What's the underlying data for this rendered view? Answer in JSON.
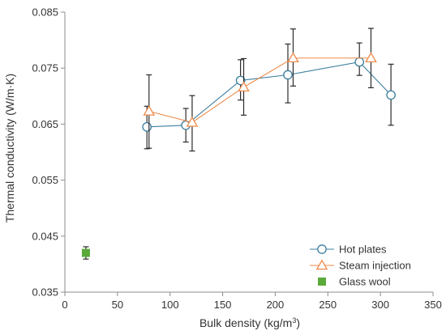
{
  "chart_data": {
    "type": "scatter",
    "title": "",
    "xlabel": {
      "prefix": "Bulk density (kg/m",
      "sup": "3",
      "suffix": ")"
    },
    "ylabel": "Thermal conductivity (W/m·K)",
    "xlim": [
      0,
      350
    ],
    "ylim": [
      0.035,
      0.085
    ],
    "x_ticks": [
      0,
      50,
      100,
      150,
      200,
      250,
      300,
      350
    ],
    "x_tick_labels": [
      "0",
      "50",
      "100",
      "150",
      "200",
      "250",
      "300",
      "350"
    ],
    "y_ticks": [
      0.035,
      0.045,
      0.055,
      0.065,
      0.075,
      0.085
    ],
    "y_tick_labels": [
      "0.035",
      "0.045",
      "0.055",
      "0.065",
      "0.075",
      "0.085"
    ],
    "grid": false,
    "legend_position": "bottom-right",
    "series": [
      {
        "name": "Hot plates",
        "color": "#3d7f9e",
        "marker": "circle",
        "line": true,
        "points": [
          {
            "x": 78,
            "y": 0.0645,
            "err_low": 0.0039,
            "err_high": 0.0037
          },
          {
            "x": 115,
            "y": 0.0648,
            "err_low": 0.003,
            "err_high": 0.003
          },
          {
            "x": 167,
            "y": 0.0728,
            "err_low": 0.0035,
            "err_high": 0.0037
          },
          {
            "x": 212,
            "y": 0.0738,
            "err_low": 0.005,
            "err_high": 0.0055
          },
          {
            "x": 280,
            "y": 0.0761,
            "err_low": 0.0024,
            "err_high": 0.0034
          },
          {
            "x": 310,
            "y": 0.0702,
            "err_low": 0.0054,
            "err_high": 0.0055
          }
        ]
      },
      {
        "name": "Steam injection",
        "color": "#ed8b4a",
        "marker": "triangle",
        "line": true,
        "points": [
          {
            "x": 80,
            "y": 0.0673,
            "err_low": 0.0066,
            "err_high": 0.0065
          },
          {
            "x": 121,
            "y": 0.0653,
            "err_low": 0.0051,
            "err_high": 0.0048
          },
          {
            "x": 170,
            "y": 0.0716,
            "err_low": 0.005,
            "err_high": 0.0051
          },
          {
            "x": 217,
            "y": 0.0768,
            "err_low": 0.005,
            "err_high": 0.0052
          },
          {
            "x": 291,
            "y": 0.0768,
            "err_low": 0.0053,
            "err_high": 0.0053
          }
        ]
      },
      {
        "name": "Glass wool",
        "color": "#5aaa3a",
        "marker": "square",
        "line": false,
        "points": [
          {
            "x": 20,
            "y": 0.042,
            "err_low": 0.0011,
            "err_high": 0.0011
          }
        ]
      }
    ]
  }
}
